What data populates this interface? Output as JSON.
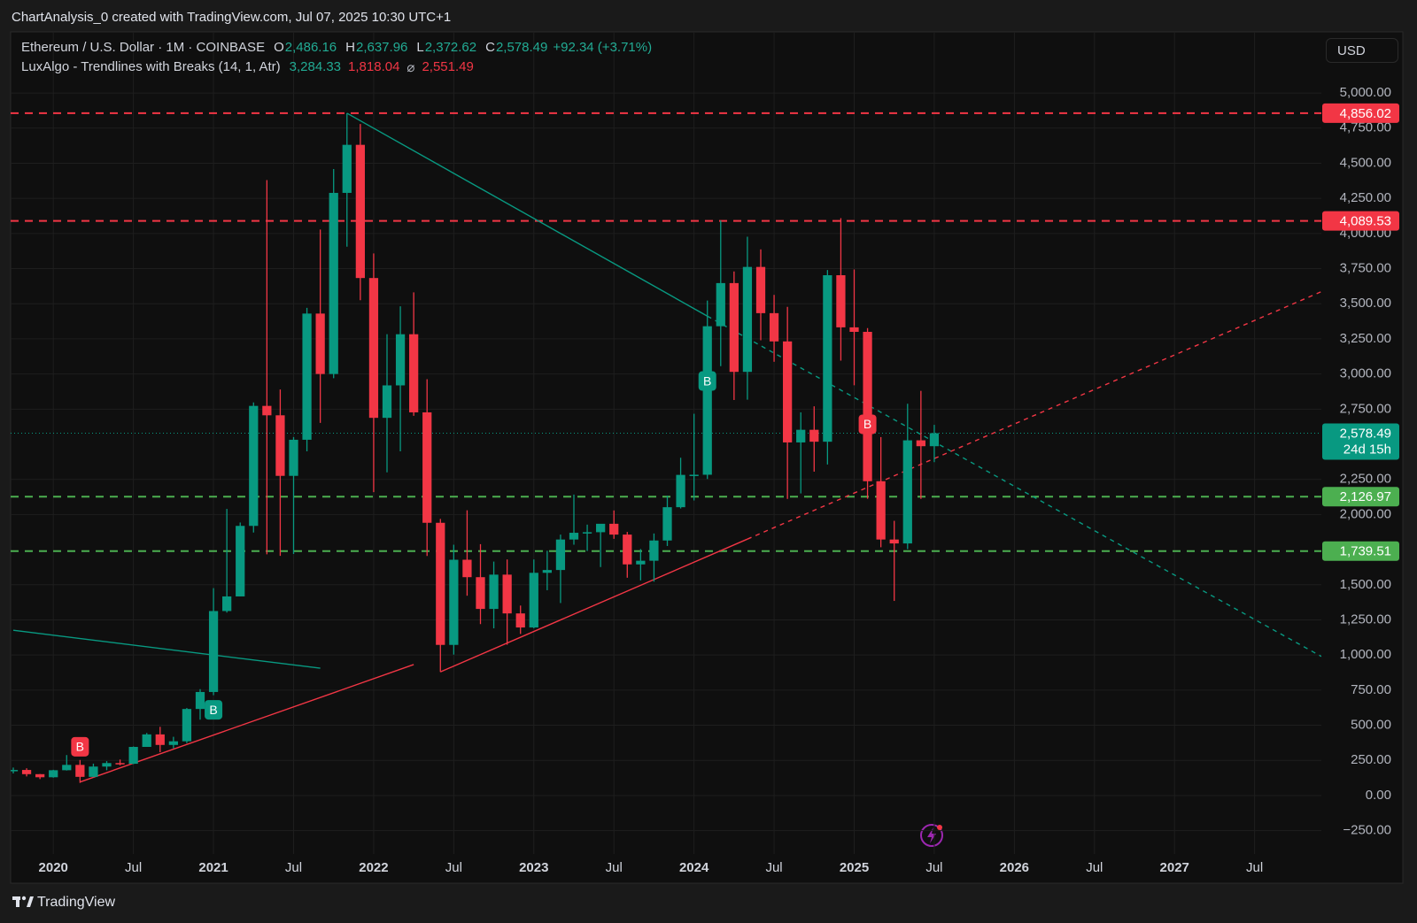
{
  "header": {
    "caption": "ChartAnalysis_0 created with TradingView.com, Jul 07, 2025 10:30 UTC+1",
    "currency": "USD",
    "brand": "TradingView",
    "ohlc": [
      {
        "key": "O",
        "value": "2,486.16"
      },
      {
        "key": "H",
        "value": "2,637.96"
      },
      {
        "key": "L",
        "value": "2,372.62"
      },
      {
        "key": "C",
        "value": "2,578.49"
      }
    ],
    "change": "+92.34 (+3.71%)",
    "indicator": {
      "name": "LuxAlgo - Trendlines with Breaks (14, 1, Atr)",
      "values": [
        {
          "text": "3,284.33",
          "color": "#22ab94"
        },
        {
          "text": "1,818.04",
          "color": "#f23645"
        },
        {
          "text": "⌀",
          "color": "#b2b5be"
        },
        {
          "text": "2,551.49",
          "color": "#f23645"
        }
      ]
    }
  },
  "chart_data": {
    "type": "candlestick",
    "title": "Ethereum / U.S. Dollar · 1M · COINBASE",
    "x": [
      "2019-10",
      "2019-11",
      "2019-12",
      "2020-01",
      "2020-02",
      "2020-03",
      "2020-04",
      "2020-05",
      "2020-06",
      "2020-07",
      "2020-08",
      "2020-09",
      "2020-10",
      "2020-11",
      "2020-12",
      "2021-01",
      "2021-02",
      "2021-03",
      "2021-04",
      "2021-05",
      "2021-06",
      "2021-07",
      "2021-08",
      "2021-09",
      "2021-10",
      "2021-11",
      "2021-12",
      "2022-01",
      "2022-02",
      "2022-03",
      "2022-04",
      "2022-05",
      "2022-06",
      "2022-07",
      "2022-08",
      "2022-09",
      "2022-10",
      "2022-11",
      "2022-12",
      "2023-01",
      "2023-02",
      "2023-03",
      "2023-04",
      "2023-05",
      "2023-06",
      "2023-07",
      "2023-08",
      "2023-09",
      "2023-10",
      "2023-11",
      "2023-12",
      "2024-01",
      "2024-02",
      "2024-03",
      "2024-04",
      "2024-05",
      "2024-06",
      "2024-07",
      "2024-08",
      "2024-09",
      "2024-10",
      "2024-11",
      "2024-12",
      "2025-01",
      "2025-02",
      "2025-03",
      "2025-04",
      "2025-05",
      "2025-06",
      "2025-07"
    ],
    "open": [
      180,
      182,
      152,
      130,
      180,
      218,
      133,
      206,
      231,
      226,
      346,
      435,
      360,
      386,
      616,
      737,
      1313,
      1417,
      1919,
      2773,
      2706,
      2275,
      2532,
      3430,
      3000,
      4289,
      4631,
      3683,
      2688,
      2919,
      3283,
      2727,
      1941,
      1072,
      1678,
      1554,
      1328,
      1572,
      1296,
      1196,
      1585,
      1605,
      1822,
      1870,
      1874,
      1934,
      1857,
      1645,
      1671,
      1815,
      2052,
      2282,
      2283,
      3340,
      3647,
      3015,
      3762,
      3433,
      3232,
      2513,
      2603,
      2518,
      3703,
      3332,
      3300,
      2237,
      1822,
      1794,
      2528,
      2486.16
    ],
    "high": [
      199,
      194,
      153,
      183,
      288,
      253,
      227,
      245,
      256,
      349,
      445,
      489,
      418,
      623,
      757,
      1476,
      2040,
      1943,
      2798,
      4380,
      2890,
      2551,
      3471,
      4028,
      4459,
      4856,
      4779,
      3858,
      3283,
      3482,
      3581,
      2963,
      1969,
      1785,
      2030,
      1789,
      1665,
      1680,
      1352,
      1680,
      1742,
      1857,
      2142,
      1928,
      1929,
      2029,
      1876,
      1754,
      1865,
      2134,
      2404,
      2717,
      3523,
      4093,
      3730,
      3977,
      3887,
      3563,
      3478,
      2727,
      2770,
      3740,
      4109,
      3744,
      3327,
      2551,
      1955,
      2788,
      2880,
      2637.96
    ],
    "low": [
      157,
      136,
      117,
      127,
      178,
      90,
      130,
      180,
      215,
      223,
      346,
      308,
      336,
      373,
      540,
      714,
      1302,
      1418,
      1872,
      1717,
      1706,
      1719,
      2450,
      2652,
      2970,
      3906,
      3525,
      2159,
      2300,
      2450,
      2702,
      1705,
      880,
      1003,
      1422,
      1220,
      1190,
      1073,
      1150,
      1190,
      1461,
      1370,
      1785,
      1740,
      1626,
      1827,
      1550,
      1531,
      1522,
      1776,
      2043,
      2100,
      2253,
      3056,
      2815,
      2817,
      3240,
      3087,
      2111,
      2150,
      2305,
      2356,
      3095,
      2920,
      2112,
      1767,
      1385,
      1754,
      2111,
      2372.62
    ],
    "close": [
      182,
      152,
      130,
      180,
      218,
      133,
      206,
      231,
      226,
      346,
      435,
      360,
      386,
      616,
      737,
      1313,
      1417,
      1919,
      2773,
      2706,
      2275,
      2532,
      3430,
      3000,
      4289,
      4631,
      3683,
      2688,
      2919,
      3283,
      2727,
      1941,
      1072,
      1678,
      1554,
      1328,
      1572,
      1296,
      1196,
      1585,
      1605,
      1822,
      1870,
      1874,
      1934,
      1857,
      1645,
      1671,
      1815,
      2052,
      2282,
      2283,
      3340,
      3647,
      3015,
      3762,
      3433,
      3232,
      2513,
      2603,
      2518,
      3703,
      3332,
      3300,
      2237,
      1822,
      1794,
      2528,
      2486.16,
      2578.49
    ],
    "up_color": "#089981",
    "down_color": "#f23645",
    "xlim": [
      "2019-10",
      "2027-12"
    ],
    "xticks": [
      {
        "value": "2020-01",
        "label": "2020"
      },
      {
        "value": "2020-07",
        "label": "Jul"
      },
      {
        "value": "2021-01",
        "label": "2021"
      },
      {
        "value": "2021-07",
        "label": "Jul"
      },
      {
        "value": "2022-01",
        "label": "2022"
      },
      {
        "value": "2022-07",
        "label": "Jul"
      },
      {
        "value": "2023-01",
        "label": "2023"
      },
      {
        "value": "2023-07",
        "label": "Jul"
      },
      {
        "value": "2024-01",
        "label": "2024"
      },
      {
        "value": "2024-07",
        "label": "Jul"
      },
      {
        "value": "2025-01",
        "label": "2025"
      },
      {
        "value": "2025-07",
        "label": "Jul"
      },
      {
        "value": "2026-01",
        "label": "2026"
      },
      {
        "value": "2026-07",
        "label": "Jul"
      },
      {
        "value": "2027-01",
        "label": "2027"
      },
      {
        "value": "2027-07",
        "label": "Jul"
      }
    ],
    "ylim": [
      -416,
      5435
    ],
    "yticks": [
      {
        "value": -250,
        "label": "−250.00"
      },
      {
        "value": 0,
        "label": "0.00"
      },
      {
        "value": 250,
        "label": "250.00"
      },
      {
        "value": 500,
        "label": "500.00"
      },
      {
        "value": 750,
        "label": "750.00"
      },
      {
        "value": 1000,
        "label": "1,000.00"
      },
      {
        "value": 1250,
        "label": "1,250.00"
      },
      {
        "value": 1500,
        "label": "1,500.00"
      },
      {
        "value": 2000,
        "label": "2,000.00"
      },
      {
        "value": 2250,
        "label": "2,250.00"
      },
      {
        "value": 2750,
        "label": "2,750.00"
      },
      {
        "value": 3000,
        "label": "3,000.00"
      },
      {
        "value": 3250,
        "label": "3,250.00"
      },
      {
        "value": 3500,
        "label": "3,500.00"
      },
      {
        "value": 3750,
        "label": "3,750.00"
      },
      {
        "value": 4000,
        "label": "4,000.00"
      },
      {
        "value": 4250,
        "label": "4,250.00"
      },
      {
        "value": 4500,
        "label": "4,500.00"
      },
      {
        "value": 4750,
        "label": "4,750.00"
      },
      {
        "value": 5000,
        "label": "5,000.00"
      }
    ],
    "grid": true,
    "levels": [
      {
        "value": 4856.02,
        "label": "4,856.02",
        "color": "#f23645"
      },
      {
        "value": 4089.53,
        "label": "4,089.53",
        "color": "#f23645"
      },
      {
        "value": 2126.97,
        "label": "2,126.97",
        "color": "#4caf50"
      },
      {
        "value": 1739.51,
        "label": "1,739.51",
        "color": "#4caf50"
      }
    ],
    "last_price": {
      "value": 2578.49,
      "label": "2,578.49",
      "countdown": "24d 15h",
      "color": "#089981"
    },
    "trendlines": [
      {
        "color": "#089981",
        "style": "solid",
        "x": [
          "2021-11",
          "2024-02"
        ],
        "y": [
          4856,
          3412
        ]
      },
      {
        "color": "#089981",
        "style": "dashed",
        "x": [
          "2024-02",
          "2027-12"
        ],
        "y": [
          3412,
          990
        ]
      },
      {
        "color": "#089981",
        "style": "solid",
        "x": [
          "2019-10",
          "2021-09"
        ],
        "y": [
          1176,
          906
        ]
      },
      {
        "color": "#f23645",
        "style": "solid",
        "x": [
          "2020-03",
          "2022-04"
        ],
        "y": [
          96,
          932
        ]
      },
      {
        "color": "#f23645",
        "style": "solid",
        "x": [
          "2022-06",
          "2024-05"
        ],
        "y": [
          880,
          1825
        ]
      },
      {
        "color": "#f23645",
        "style": "dashed",
        "x": [
          "2024-05",
          "2027-12"
        ],
        "y": [
          1825,
          3586
        ]
      }
    ],
    "breaks": [
      {
        "x": "2020-03",
        "y": 347,
        "label": "B",
        "color": "#f23645"
      },
      {
        "x": "2021-01",
        "y": 610,
        "label": "B",
        "color": "#089981"
      },
      {
        "x": "2024-02",
        "y": 2950,
        "label": "B",
        "color": "#089981"
      },
      {
        "x": "2025-02",
        "y": 2642,
        "label": "B",
        "color": "#f23645"
      }
    ]
  }
}
